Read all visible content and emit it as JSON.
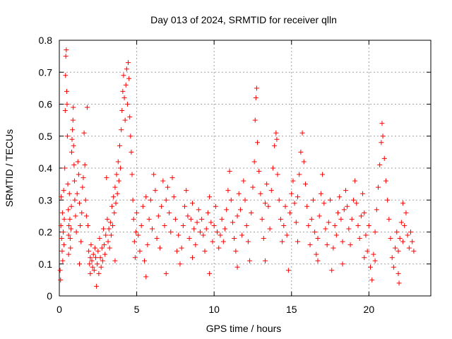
{
  "chart_data": {
    "type": "scatter",
    "title": "Day 013 of 2024, SRMTID for receiver qlln",
    "xlabel": "GPS time / hours",
    "ylabel": "SRMTID / TECUs",
    "xlim": [
      0,
      24
    ],
    "ylim": [
      0,
      0.8
    ],
    "x_ticks": [
      0,
      5,
      10,
      15,
      20
    ],
    "x_tick_labels": [
      "0",
      "5",
      "10",
      "15",
      "20"
    ],
    "y_ticks": [
      0,
      0.1,
      0.2,
      0.3,
      0.4,
      0.5,
      0.6,
      0.7,
      0.8
    ],
    "y_tick_labels": [
      "0",
      "0.1",
      "0.2",
      "0.3",
      "0.4",
      "0.5",
      "0.6",
      "0.7",
      "0.8"
    ],
    "grid": true,
    "marker": "+",
    "marker_color": "#ff0000",
    "series": [
      {
        "name": "SRMTID",
        "points": [
          [
            0.05,
            0.08
          ],
          [
            0.08,
            0.05
          ],
          [
            0.1,
            0.22
          ],
          [
            0.12,
            0.31
          ],
          [
            0.15,
            0.18
          ],
          [
            0.18,
            0.14
          ],
          [
            0.2,
            0.26
          ],
          [
            0.22,
            0.11
          ],
          [
            0.25,
            0.2
          ],
          [
            0.28,
            0.33
          ],
          [
            0.3,
            0.16
          ],
          [
            0.32,
            0.24
          ],
          [
            0.35,
            0.4
          ],
          [
            0.38,
            0.58
          ],
          [
            0.4,
            0.69
          ],
          [
            0.42,
            0.75
          ],
          [
            0.45,
            0.77
          ],
          [
            0.48,
            0.64
          ],
          [
            0.5,
            0.6
          ],
          [
            0.52,
            0.5
          ],
          [
            0.55,
            0.35
          ],
          [
            0.58,
            0.27
          ],
          [
            0.6,
            0.19
          ],
          [
            0.62,
            0.22
          ],
          [
            0.65,
            0.32
          ],
          [
            0.68,
            0.24
          ],
          [
            0.7,
            0.18
          ],
          [
            0.72,
            0.15
          ],
          [
            0.75,
            0.21
          ],
          [
            0.78,
            0.28
          ],
          [
            0.8,
            0.45
          ],
          [
            0.82,
            0.49
          ],
          [
            0.85,
            0.52
          ],
          [
            0.88,
            0.55
          ],
          [
            0.9,
            0.59
          ],
          [
            0.92,
            0.47
          ],
          [
            0.95,
            0.41
          ],
          [
            0.98,
            0.36
          ],
          [
            1.0,
            0.3
          ],
          [
            1.05,
            0.25
          ],
          [
            1.1,
            0.2
          ],
          [
            1.15,
            0.32
          ],
          [
            1.2,
            0.42
          ],
          [
            1.25,
            0.38
          ],
          [
            1.3,
            0.29
          ],
          [
            1.35,
            0.22
          ],
          [
            1.4,
            0.17
          ],
          [
            1.45,
            0.26
          ],
          [
            1.5,
            0.34
          ],
          [
            1.55,
            0.37
          ],
          [
            1.6,
            0.51
          ],
          [
            1.65,
            0.41
          ],
          [
            1.7,
            0.3
          ],
          [
            1.75,
            0.25
          ],
          [
            1.8,
            0.59
          ],
          [
            1.85,
            0.22
          ],
          [
            1.9,
            0.14
          ],
          [
            1.95,
            0.1
          ],
          [
            2.0,
            0.12
          ],
          [
            2.05,
            0.16
          ],
          [
            2.1,
            0.11
          ],
          [
            2.15,
            0.09
          ],
          [
            2.2,
            0.13
          ],
          [
            2.25,
            0.08
          ],
          [
            2.3,
            0.15
          ],
          [
            2.35,
            0.12
          ],
          [
            2.4,
            0.03
          ],
          [
            2.45,
            0.1
          ],
          [
            2.5,
            0.14
          ],
          [
            2.55,
            0.07
          ],
          [
            2.6,
            0.18
          ],
          [
            2.65,
            0.12
          ],
          [
            2.7,
            0.09
          ],
          [
            2.75,
            0.15
          ],
          [
            2.8,
            0.11
          ],
          [
            2.85,
            0.21
          ],
          [
            2.9,
            0.16
          ],
          [
            2.95,
            0.13
          ],
          [
            3.0,
            0.19
          ],
          [
            3.05,
            0.37
          ],
          [
            3.1,
            0.24
          ],
          [
            3.15,
            0.17
          ],
          [
            3.2,
            0.21
          ],
          [
            3.25,
            0.15
          ],
          [
            3.3,
            0.23
          ],
          [
            3.35,
            0.19
          ],
          [
            3.4,
            0.28
          ],
          [
            3.45,
            0.22
          ],
          [
            3.5,
            0.31
          ],
          [
            3.55,
            0.26
          ],
          [
            3.6,
            0.34
          ],
          [
            3.65,
            0.29
          ],
          [
            3.7,
            0.38
          ],
          [
            3.75,
            0.32
          ],
          [
            3.8,
            0.42
          ],
          [
            3.85,
            0.36
          ],
          [
            3.9,
            0.47
          ],
          [
            3.95,
            0.4
          ],
          [
            4.0,
            0.52
          ],
          [
            4.05,
            0.58
          ],
          [
            4.1,
            0.64
          ],
          [
            4.15,
            0.69
          ],
          [
            4.2,
            0.62
          ],
          [
            4.25,
            0.55
          ],
          [
            4.3,
            0.66
          ],
          [
            4.35,
            0.71
          ],
          [
            4.4,
            0.6
          ],
          [
            4.45,
            0.73
          ],
          [
            4.5,
            0.68
          ],
          [
            4.55,
            0.56
          ],
          [
            4.6,
            0.5
          ],
          [
            4.65,
            0.45
          ],
          [
            4.7,
            0.38
          ],
          [
            4.75,
            0.3
          ],
          [
            4.8,
            0.24
          ],
          [
            4.85,
            0.17
          ],
          [
            4.9,
            0.12
          ],
          [
            4.95,
            0.2
          ],
          [
            5.0,
            0.26
          ],
          [
            5.1,
            0.19
          ],
          [
            5.2,
            0.14
          ],
          [
            5.3,
            0.22
          ],
          [
            5.4,
            0.28
          ],
          [
            5.5,
            0.11
          ],
          [
            5.6,
            0.06
          ],
          [
            5.7,
            0.16
          ],
          [
            5.8,
            0.24
          ],
          [
            5.9,
            0.3
          ],
          [
            6.0,
            0.21
          ],
          [
            6.1,
            0.38
          ],
          [
            6.2,
            0.33
          ],
          [
            6.3,
            0.18
          ],
          [
            6.4,
            0.25
          ],
          [
            6.5,
            0.15
          ],
          [
            6.6,
            0.28
          ],
          [
            6.7,
            0.36
          ],
          [
            6.8,
            0.22
          ],
          [
            6.9,
            0.3
          ],
          [
            7.0,
            0.34
          ],
          [
            7.1,
            0.26
          ],
          [
            7.2,
            0.2
          ],
          [
            7.3,
            0.37
          ],
          [
            7.4,
            0.31
          ],
          [
            7.5,
            0.24
          ],
          [
            7.6,
            0.14
          ],
          [
            7.7,
            0.19
          ],
          [
            7.8,
            0.1
          ],
          [
            7.9,
            0.15
          ],
          [
            8.0,
            0.22
          ],
          [
            8.1,
            0.28
          ],
          [
            8.2,
            0.33
          ],
          [
            8.3,
            0.25
          ],
          [
            8.4,
            0.18
          ],
          [
            8.5,
            0.24
          ],
          [
            8.6,
            0.29
          ],
          [
            8.7,
            0.21
          ],
          [
            8.8,
            0.16
          ],
          [
            8.9,
            0.23
          ],
          [
            9.0,
            0.27
          ],
          [
            9.1,
            0.2
          ],
          [
            9.2,
            0.24
          ],
          [
            9.3,
            0.19
          ],
          [
            9.4,
            0.14
          ],
          [
            9.5,
            0.21
          ],
          [
            9.6,
            0.26
          ],
          [
            9.7,
            0.31
          ],
          [
            9.8,
            0.23
          ],
          [
            9.9,
            0.17
          ],
          [
            10.0,
            0.22
          ],
          [
            10.1,
            0.28
          ],
          [
            10.2,
            0.2
          ],
          [
            10.3,
            0.15
          ],
          [
            10.4,
            0.19
          ],
          [
            10.5,
            0.24
          ],
          [
            10.6,
            0.17
          ],
          [
            10.7,
            0.21
          ],
          [
            10.8,
            0.27
          ],
          [
            10.9,
            0.33
          ],
          [
            11.0,
            0.39
          ],
          [
            11.1,
            0.3
          ],
          [
            11.2,
            0.23
          ],
          [
            11.3,
            0.18
          ],
          [
            11.4,
            0.14
          ],
          [
            11.5,
            0.25
          ],
          [
            11.6,
            0.32
          ],
          [
            11.7,
            0.27
          ],
          [
            11.8,
            0.19
          ],
          [
            11.9,
            0.36
          ],
          [
            12.0,
            0.3
          ],
          [
            12.1,
            0.22
          ],
          [
            12.2,
            0.17
          ],
          [
            12.3,
            0.11
          ],
          [
            12.4,
            0.26
          ],
          [
            12.5,
            0.34
          ],
          [
            12.6,
            0.42
          ],
          [
            12.65,
            0.55
          ],
          [
            12.7,
            0.62
          ],
          [
            12.75,
            0.65
          ],
          [
            12.8,
            0.48
          ],
          [
            12.9,
            0.39
          ],
          [
            13.0,
            0.32
          ],
          [
            13.1,
            0.24
          ],
          [
            13.2,
            0.18
          ],
          [
            13.3,
            0.29
          ],
          [
            13.4,
            0.35
          ],
          [
            13.5,
            0.28
          ],
          [
            13.6,
            0.21
          ],
          [
            13.7,
            0.33
          ],
          [
            13.8,
            0.4
          ],
          [
            13.9,
            0.47
          ],
          [
            14.0,
            0.51
          ],
          [
            14.05,
            0.49
          ],
          [
            14.1,
            0.38
          ],
          [
            14.2,
            0.3
          ],
          [
            14.3,
            0.24
          ],
          [
            14.4,
            0.17
          ],
          [
            14.5,
            0.22
          ],
          [
            14.6,
            0.28
          ],
          [
            14.7,
            0.19
          ],
          [
            14.8,
            0.08
          ],
          [
            14.9,
            0.26
          ],
          [
            15.0,
            0.32
          ],
          [
            15.1,
            0.36
          ],
          [
            15.2,
            0.29
          ],
          [
            15.3,
            0.23
          ],
          [
            15.4,
            0.31
          ],
          [
            15.5,
            0.38
          ],
          [
            15.6,
            0.45
          ],
          [
            15.7,
            0.51
          ],
          [
            15.8,
            0.42
          ],
          [
            15.9,
            0.35
          ],
          [
            16.0,
            0.28
          ],
          [
            16.1,
            0.22
          ],
          [
            16.2,
            0.16
          ],
          [
            16.3,
            0.24
          ],
          [
            16.4,
            0.3
          ],
          [
            16.5,
            0.2
          ],
          [
            16.6,
            0.13
          ],
          [
            16.7,
            0.18
          ],
          [
            16.8,
            0.25
          ],
          [
            16.9,
            0.32
          ],
          [
            17.0,
            0.38
          ],
          [
            17.1,
            0.29
          ],
          [
            17.2,
            0.21
          ],
          [
            17.3,
            0.16
          ],
          [
            17.4,
            0.23
          ],
          [
            17.5,
            0.3
          ],
          [
            17.6,
            0.08
          ],
          [
            17.7,
            0.15
          ],
          [
            17.8,
            0.22
          ],
          [
            17.9,
            0.19
          ],
          [
            18.0,
            0.26
          ],
          [
            18.1,
            0.31
          ],
          [
            18.2,
            0.24
          ],
          [
            18.3,
            0.17
          ],
          [
            18.4,
            0.27
          ],
          [
            18.5,
            0.33
          ],
          [
            18.6,
            0.28
          ],
          [
            18.7,
            0.21
          ],
          [
            18.8,
            0.16
          ],
          [
            18.9,
            0.24
          ],
          [
            19.0,
            0.3
          ],
          [
            19.1,
            0.36
          ],
          [
            19.2,
            0.29
          ],
          [
            19.3,
            0.22
          ],
          [
            19.4,
            0.18
          ],
          [
            19.5,
            0.25
          ],
          [
            19.6,
            0.32
          ],
          [
            19.7,
            0.26
          ],
          [
            19.8,
            0.19
          ],
          [
            19.9,
            0.14
          ],
          [
            20.0,
            0.22
          ],
          [
            20.1,
            0.09
          ],
          [
            20.2,
            0.05
          ],
          [
            20.3,
            0.13
          ],
          [
            20.4,
            0.2
          ],
          [
            20.5,
            0.27
          ],
          [
            20.6,
            0.34
          ],
          [
            20.7,
            0.41
          ],
          [
            20.8,
            0.48
          ],
          [
            20.85,
            0.54
          ],
          [
            20.9,
            0.5
          ],
          [
            21.0,
            0.43
          ],
          [
            21.1,
            0.36
          ],
          [
            21.2,
            0.3
          ],
          [
            21.3,
            0.24
          ],
          [
            21.4,
            0.18
          ],
          [
            21.5,
            0.12
          ],
          [
            21.6,
            0.09
          ],
          [
            21.7,
            0.15
          ],
          [
            21.8,
            0.2
          ],
          [
            21.9,
            0.14
          ],
          [
            22.0,
            0.18
          ],
          [
            22.1,
            0.23
          ],
          [
            22.2,
            0.17
          ],
          [
            22.3,
            0.22
          ],
          [
            22.4,
            0.26
          ],
          [
            22.5,
            0.19
          ],
          [
            22.6,
            0.15
          ],
          [
            22.7,
            0.2
          ],
          [
            22.8,
            0.17
          ],
          [
            22.9,
            0.14
          ],
          [
            21.95,
            0.04
          ],
          [
            21.9,
            0.07
          ],
          [
            22.2,
            0.29
          ],
          [
            0.6,
            0.13
          ],
          [
            1.3,
            0.1
          ],
          [
            2.0,
            0.07
          ],
          [
            3.6,
            0.11
          ],
          [
            5.6,
            0.31
          ],
          [
            6.9,
            0.07
          ],
          [
            8.6,
            0.12
          ],
          [
            9.7,
            0.07
          ],
          [
            11.5,
            0.09
          ],
          [
            13.3,
            0.11
          ],
          [
            15.4,
            0.17
          ],
          [
            16.7,
            0.11
          ],
          [
            18.3,
            0.1
          ],
          [
            19.7,
            0.12
          ],
          [
            20.4,
            0.11
          ]
        ]
      }
    ]
  }
}
